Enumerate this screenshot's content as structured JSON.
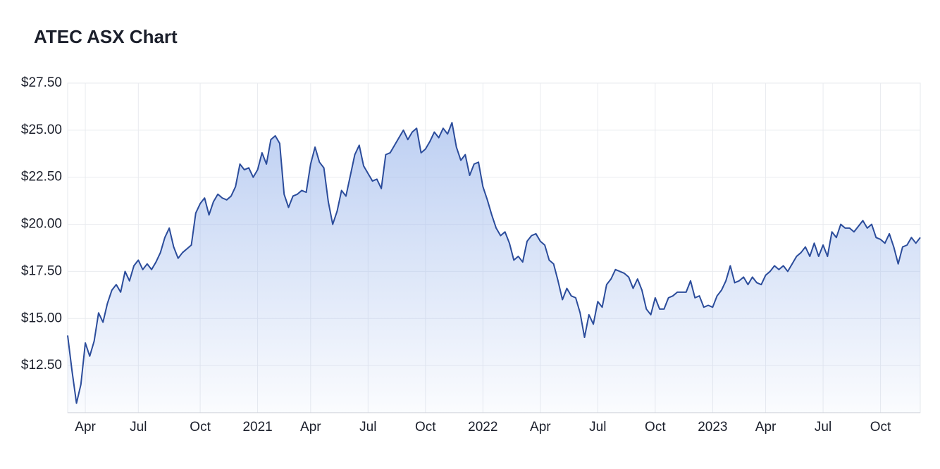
{
  "chart_data": {
    "type": "area",
    "title": "ATEC ASX Chart",
    "color": "#2b4c9b",
    "fill_color": "#a8c0ee",
    "grid": true,
    "ylim": [
      10,
      27.5
    ],
    "yticks": [
      {
        "value": 12.5,
        "label": "$12.50"
      },
      {
        "value": 15,
        "label": "$15.00"
      },
      {
        "value": 17.5,
        "label": "$17.50"
      },
      {
        "value": 20,
        "label": "$20.00"
      },
      {
        "value": 22.5,
        "label": "$22.50"
      },
      {
        "value": 25,
        "label": "$25.00"
      },
      {
        "value": 27.5,
        "label": "$27.50"
      }
    ],
    "categories": [
      null,
      null,
      null,
      null,
      "Apr",
      null,
      null,
      null,
      null,
      null,
      null,
      null,
      null,
      null,
      null,
      null,
      "Jul",
      null,
      null,
      null,
      null,
      null,
      null,
      null,
      null,
      null,
      null,
      null,
      null,
      null,
      "Oct",
      null,
      null,
      null,
      null,
      null,
      null,
      null,
      null,
      null,
      null,
      null,
      null,
      "2021",
      null,
      null,
      null,
      null,
      null,
      null,
      null,
      null,
      null,
      null,
      null,
      "Apr",
      null,
      null,
      null,
      null,
      null,
      null,
      null,
      null,
      null,
      null,
      null,
      null,
      "Jul",
      null,
      null,
      null,
      null,
      null,
      null,
      null,
      null,
      null,
      null,
      null,
      null,
      "Oct",
      null,
      null,
      null,
      null,
      null,
      null,
      null,
      null,
      null,
      null,
      null,
      null,
      "2022",
      null,
      null,
      null,
      null,
      null,
      null,
      null,
      null,
      null,
      null,
      null,
      null,
      "Apr",
      null,
      null,
      null,
      null,
      null,
      null,
      null,
      null,
      null,
      null,
      null,
      null,
      "Jul",
      null,
      null,
      null,
      null,
      null,
      null,
      null,
      null,
      null,
      null,
      null,
      null,
      "Oct",
      null,
      null,
      null,
      null,
      null,
      null,
      null,
      null,
      null,
      null,
      null,
      null,
      "2023",
      null,
      null,
      null,
      null,
      null,
      null,
      null,
      null,
      null,
      null,
      null,
      "Apr",
      null,
      null,
      null,
      null,
      null,
      null,
      null,
      null,
      null,
      null,
      null,
      null,
      "Jul",
      null,
      null,
      null,
      null,
      null,
      null,
      null,
      null,
      null,
      null,
      null,
      null,
      "Oct",
      null,
      null,
      null,
      null,
      null,
      null,
      null,
      null,
      null
    ],
    "values": [
      14.1,
      12.2,
      10.5,
      11.5,
      13.7,
      13.0,
      13.8,
      15.3,
      14.8,
      15.8,
      16.5,
      16.8,
      16.4,
      17.5,
      17.0,
      17.8,
      18.1,
      17.6,
      17.9,
      17.6,
      18.0,
      18.5,
      19.3,
      19.8,
      18.8,
      18.2,
      18.5,
      18.7,
      18.9,
      20.6,
      21.1,
      21.4,
      20.5,
      21.2,
      21.6,
      21.4,
      21.3,
      21.5,
      22.0,
      23.2,
      22.9,
      23.0,
      22.5,
      22.9,
      23.8,
      23.2,
      24.5,
      24.7,
      24.3,
      21.6,
      20.9,
      21.5,
      21.6,
      21.8,
      21.7,
      23.2,
      24.1,
      23.3,
      23.0,
      21.2,
      20.0,
      20.7,
      21.8,
      21.5,
      22.6,
      23.7,
      24.2,
      23.1,
      22.7,
      22.3,
      22.4,
      21.9,
      23.7,
      23.8,
      24.2,
      24.6,
      25.0,
      24.5,
      24.9,
      25.1,
      23.8,
      24.0,
      24.4,
      24.9,
      24.6,
      25.1,
      24.8,
      25.4,
      24.1,
      23.4,
      23.7,
      22.6,
      23.2,
      23.3,
      22.0,
      21.3,
      20.5,
      19.8,
      19.4,
      19.6,
      19.0,
      18.1,
      18.3,
      18.0,
      19.1,
      19.4,
      19.5,
      19.1,
      18.9,
      18.1,
      17.9,
      17.0,
      16.0,
      16.6,
      16.2,
      16.1,
      15.3,
      14.0,
      15.2,
      14.7,
      15.9,
      15.6,
      16.8,
      17.1,
      17.6,
      17.5,
      17.4,
      17.2,
      16.6,
      17.1,
      16.5,
      15.5,
      15.2,
      16.1,
      15.5,
      15.5,
      16.1,
      16.2,
      16.4,
      16.4,
      16.4,
      17.0,
      16.1,
      16.2,
      15.6,
      15.7,
      15.6,
      16.2,
      16.5,
      17.0,
      17.8,
      16.9,
      17.0,
      17.2,
      16.8,
      17.2,
      16.9,
      16.8,
      17.3,
      17.5,
      17.8,
      17.6,
      17.8,
      17.5,
      17.9,
      18.3,
      18.5,
      18.8,
      18.3,
      19.0,
      18.3,
      18.9,
      18.3,
      19.6,
      19.3,
      20.0,
      19.8,
      19.8,
      19.6,
      19.9,
      20.2,
      19.8,
      20.0,
      19.3,
      19.2,
      19.0,
      19.5,
      18.8,
      17.9,
      18.8,
      18.9,
      19.3,
      19.0,
      19.3
    ]
  }
}
